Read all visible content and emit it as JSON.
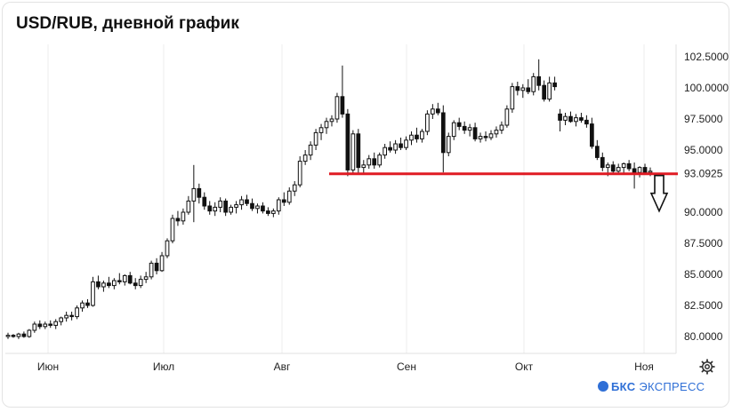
{
  "title": "USD/RUB, дневной график",
  "brand": {
    "prefix": "БКС",
    "name": "ЭКСПРЕСС"
  },
  "icons": {
    "settings": "gear-icon",
    "arrow": "arrow-down-icon",
    "logo": "bks-logo-icon"
  },
  "colors": {
    "candle": "#111111",
    "support": "#e01b24",
    "grid": "#ececec"
  },
  "chart_data": {
    "type": "candlestick",
    "title": "USD/RUB, дневной график",
    "x_ticks": [
      "Июн",
      "Июл",
      "Авг",
      "Сен",
      "Окт",
      "Ноя"
    ],
    "y_ticks": [
      "102.5000",
      "100.0000",
      "97.5000",
      "95.0000",
      "93.0925",
      "90.0000",
      "87.5000",
      "85.0000",
      "82.5000",
      "80.0000"
    ],
    "ylim": [
      78.2,
      104.3
    ],
    "grid": "vertical",
    "support_level": 93.0925,
    "annotation": "arrow-down",
    "candles": [
      [
        80.0,
        80.3,
        79.8,
        80.1
      ],
      [
        80.1,
        80.2,
        79.9,
        80.0
      ],
      [
        80.0,
        80.3,
        79.8,
        80.2
      ],
      [
        80.2,
        80.4,
        79.9,
        80.0
      ],
      [
        80.0,
        80.6,
        79.9,
        80.5
      ],
      [
        80.5,
        81.2,
        80.3,
        81.0
      ],
      [
        81.0,
        81.3,
        80.6,
        80.8
      ],
      [
        80.8,
        81.2,
        80.6,
        81.0
      ],
      [
        81.0,
        81.3,
        80.7,
        80.9
      ],
      [
        80.9,
        81.4,
        80.6,
        81.2
      ],
      [
        81.2,
        81.6,
        80.9,
        81.5
      ],
      [
        81.5,
        82.0,
        81.2,
        81.7
      ],
      [
        81.7,
        82.0,
        81.3,
        81.6
      ],
      [
        81.6,
        82.5,
        81.4,
        82.3
      ],
      [
        82.3,
        82.9,
        82.0,
        82.7
      ],
      [
        82.7,
        83.0,
        82.3,
        82.5
      ],
      [
        82.5,
        84.8,
        82.4,
        84.4
      ],
      [
        84.4,
        84.9,
        83.8,
        84.0
      ],
      [
        84.0,
        84.5,
        83.6,
        84.3
      ],
      [
        84.3,
        84.8,
        83.9,
        84.1
      ],
      [
        84.1,
        84.7,
        83.8,
        84.5
      ],
      [
        84.5,
        85.1,
        84.2,
        84.4
      ],
      [
        84.4,
        85.0,
        84.1,
        84.9
      ],
      [
        84.9,
        85.2,
        84.2,
        84.3
      ],
      [
        84.3,
        84.7,
        83.8,
        84.1
      ],
      [
        84.1,
        84.9,
        83.9,
        84.6
      ],
      [
        84.6,
        85.2,
        84.3,
        84.8
      ],
      [
        84.8,
        86.1,
        84.6,
        85.9
      ],
      [
        85.9,
        86.3,
        85.0,
        85.3
      ],
      [
        85.3,
        86.8,
        85.2,
        86.5
      ],
      [
        86.5,
        87.9,
        86.3,
        87.7
      ],
      [
        87.7,
        89.8,
        87.5,
        89.5
      ],
      [
        89.5,
        90.1,
        88.9,
        89.3
      ],
      [
        89.3,
        90.3,
        89.0,
        90.0
      ],
      [
        90.0,
        91.3,
        89.8,
        90.9
      ],
      [
        90.9,
        93.8,
        89.2,
        91.9
      ],
      [
        91.9,
        92.3,
        90.7,
        91.2
      ],
      [
        91.2,
        91.6,
        90.2,
        90.5
      ],
      [
        90.5,
        90.9,
        89.8,
        90.1
      ],
      [
        90.1,
        90.8,
        89.7,
        90.4
      ],
      [
        90.4,
        91.2,
        90.0,
        90.9
      ],
      [
        90.9,
        91.1,
        89.7,
        90.0
      ],
      [
        90.0,
        90.6,
        89.8,
        90.4
      ],
      [
        90.4,
        90.9,
        89.9,
        90.6
      ],
      [
        90.6,
        91.3,
        90.2,
        91.0
      ],
      [
        91.0,
        91.4,
        90.5,
        90.7
      ],
      [
        90.7,
        91.1,
        90.1,
        90.3
      ],
      [
        90.3,
        90.7,
        89.9,
        90.5
      ],
      [
        90.5,
        90.8,
        89.9,
        90.1
      ],
      [
        90.1,
        90.4,
        89.7,
        89.9
      ],
      [
        89.9,
        90.3,
        89.6,
        90.1
      ],
      [
        90.1,
        91.2,
        89.8,
        91.0
      ],
      [
        91.0,
        91.6,
        90.5,
        90.8
      ],
      [
        90.8,
        92.0,
        90.6,
        91.7
      ],
      [
        91.7,
        92.5,
        91.3,
        92.2
      ],
      [
        92.2,
        94.5,
        92.0,
        94.1
      ],
      [
        94.1,
        95.0,
        93.8,
        94.6
      ],
      [
        94.6,
        95.7,
        94.2,
        95.4
      ],
      [
        95.4,
        96.7,
        95.0,
        96.4
      ],
      [
        96.4,
        97.1,
        95.8,
        96.8
      ],
      [
        96.8,
        97.6,
        96.3,
        97.3
      ],
      [
        97.3,
        97.8,
        96.9,
        97.5
      ],
      [
        97.5,
        99.6,
        97.2,
        99.3
      ],
      [
        99.3,
        101.8,
        97.6,
        97.9
      ],
      [
        97.9,
        98.3,
        92.9,
        93.4
      ],
      [
        93.4,
        96.6,
        93.1,
        96.3
      ],
      [
        96.3,
        96.7,
        93.0,
        93.6
      ],
      [
        93.6,
        94.2,
        93.0,
        93.8
      ],
      [
        93.8,
        94.6,
        93.5,
        94.3
      ],
      [
        94.3,
        94.8,
        93.5,
        93.8
      ],
      [
        93.8,
        94.8,
        93.6,
        94.6
      ],
      [
        94.6,
        95.5,
        94.3,
        95.2
      ],
      [
        95.2,
        95.7,
        94.8,
        95.0
      ],
      [
        95.0,
        95.8,
        94.7,
        95.5
      ],
      [
        95.5,
        96.0,
        95.0,
        95.2
      ],
      [
        95.2,
        96.1,
        95.0,
        95.8
      ],
      [
        95.8,
        96.5,
        95.4,
        96.2
      ],
      [
        96.2,
        96.8,
        95.6,
        95.9
      ],
      [
        95.9,
        96.7,
        95.6,
        96.5
      ],
      [
        96.5,
        98.2,
        96.2,
        97.9
      ],
      [
        97.9,
        98.7,
        97.5,
        98.3
      ],
      [
        98.3,
        98.8,
        97.8,
        98.0
      ],
      [
        98.0,
        98.6,
        93.2,
        94.8
      ],
      [
        94.8,
        96.4,
        94.5,
        96.1
      ],
      [
        96.1,
        97.4,
        95.8,
        97.2
      ],
      [
        97.2,
        97.6,
        96.6,
        96.9
      ],
      [
        96.9,
        97.3,
        96.3,
        96.6
      ],
      [
        96.6,
        97.1,
        96.1,
        96.8
      ],
      [
        96.8,
        97.2,
        95.7,
        95.9
      ],
      [
        95.9,
        96.4,
        95.6,
        96.1
      ],
      [
        96.1,
        96.5,
        95.7,
        96.0
      ],
      [
        96.0,
        96.6,
        95.8,
        96.3
      ],
      [
        96.3,
        96.9,
        96.0,
        96.6
      ],
      [
        96.6,
        97.3,
        96.3,
        97.0
      ],
      [
        97.0,
        98.6,
        96.8,
        98.3
      ],
      [
        98.3,
        100.4,
        98.0,
        100.1
      ],
      [
        100.1,
        100.5,
        99.4,
        99.8
      ],
      [
        99.8,
        100.3,
        99.2,
        100.0
      ],
      [
        100.0,
        100.7,
        99.5,
        99.7
      ],
      [
        99.7,
        101.2,
        99.4,
        100.9
      ],
      [
        100.9,
        102.3,
        99.8,
        100.2
      ],
      [
        100.2,
        100.6,
        98.9,
        99.1
      ],
      [
        99.1,
        100.9,
        98.9,
        100.4
      ],
      [
        100.4,
        100.9,
        99.8,
        100.1
      ],
      [
        97.9,
        98.3,
        96.5,
        97.4
      ],
      [
        97.4,
        98.0,
        97.0,
        97.7
      ],
      [
        97.7,
        98.1,
        97.2,
        97.3
      ],
      [
        97.3,
        97.9,
        96.9,
        97.6
      ],
      [
        97.6,
        98.0,
        97.2,
        97.4
      ],
      [
        97.4,
        97.8,
        96.8,
        97.1
      ],
      [
        97.1,
        97.6,
        95.1,
        95.3
      ],
      [
        95.3,
        95.8,
        94.2,
        94.4
      ],
      [
        94.4,
        94.8,
        93.3,
        93.6
      ],
      [
        93.6,
        94.0,
        92.9,
        93.8
      ],
      [
        93.8,
        94.1,
        93.0,
        93.3
      ],
      [
        93.3,
        93.9,
        93.0,
        93.6
      ],
      [
        93.6,
        94.0,
        93.1,
        93.9
      ],
      [
        93.9,
        94.2,
        93.3,
        93.5
      ],
      [
        93.5,
        94.0,
        91.9,
        93.2
      ],
      [
        93.2,
        93.7,
        92.8,
        93.6
      ],
      [
        93.6,
        93.9,
        93.0,
        93.2
      ],
      [
        93.2,
        93.6,
        92.9,
        93.3
      ]
    ]
  }
}
